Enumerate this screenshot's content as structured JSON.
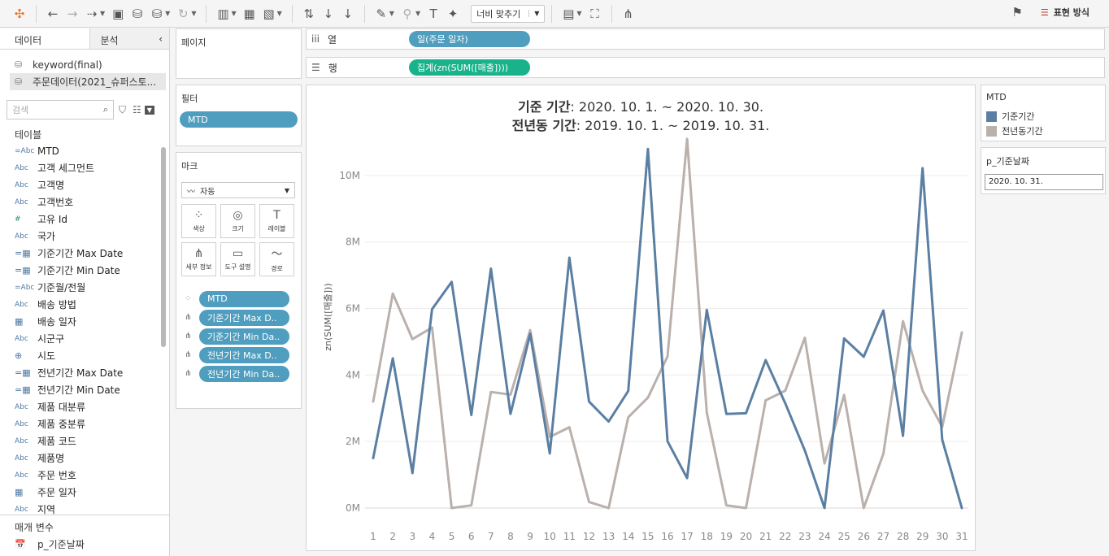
{
  "toolbar": {
    "fit_select": "너비 맞추기",
    "show_me": "표현 방식"
  },
  "data_pane": {
    "tab_data": "데이터",
    "tab_analytics": "분석",
    "datasources": [
      "keyword(final)",
      "주문데이터(2021_슈퍼스토..."
    ],
    "search_placeholder": "검색",
    "tables_header": "테이블",
    "fields": [
      {
        "type": "=Abc",
        "name": "MTD"
      },
      {
        "type": "Abc",
        "name": "고객 세그먼트"
      },
      {
        "type": "Abc",
        "name": "고객명"
      },
      {
        "type": "Abc",
        "name": "고객번호"
      },
      {
        "type": "#",
        "name": "고유 Id"
      },
      {
        "type": "Abc",
        "name": "국가"
      },
      {
        "type": "=date",
        "name": "기준기간 Max Date"
      },
      {
        "type": "=date",
        "name": "기준기간 Min Date"
      },
      {
        "type": "=Abc",
        "name": "기준월/전월"
      },
      {
        "type": "Abc",
        "name": "배송 방법"
      },
      {
        "type": "date",
        "name": "배송 일자"
      },
      {
        "type": "Abc",
        "name": "시군구"
      },
      {
        "type": "globe",
        "name": "시도"
      },
      {
        "type": "=date",
        "name": "전년기간 Max Date"
      },
      {
        "type": "=date",
        "name": "전년기간 Min Date"
      },
      {
        "type": "Abc",
        "name": "제품 대분류"
      },
      {
        "type": "Abc",
        "name": "제품 중분류"
      },
      {
        "type": "Abc",
        "name": "제품 코드"
      },
      {
        "type": "Abc",
        "name": "제품명"
      },
      {
        "type": "Abc",
        "name": "주문 번호"
      },
      {
        "type": "date",
        "name": "주문 일자"
      },
      {
        "type": "Abc",
        "name": "지역"
      }
    ],
    "params_header": "매개 변수",
    "params": [
      "p_기준날짜"
    ]
  },
  "pages": {
    "title": "페이지"
  },
  "filters": {
    "title": "필터",
    "pills": [
      "MTD"
    ]
  },
  "marks": {
    "title": "마크",
    "type": "자동",
    "buttons": [
      "색상",
      "크기",
      "레이블",
      "세부 정보",
      "도구 설명",
      "경로"
    ],
    "pills": [
      "MTD",
      "기준기간 Max D..",
      "기준기간 Min Da..",
      "전년기간 Max D..",
      "전년기간 Min Da.."
    ]
  },
  "shelves": {
    "columns_label": "열",
    "columns_pill": "일(주문 일자)",
    "rows_label": "행",
    "rows_pill": "집계(zn(SUM([매출])))"
  },
  "view": {
    "title_line1_bold": "기준 기간",
    "title_line1_rest": ": 2020. 10. 1. ~ 2020. 10. 30.",
    "title_line2_bold": "전년동 기간",
    "title_line2_rest": ": 2019. 10. 1. ~ 2019. 10. 31."
  },
  "legend": {
    "title": "MTD",
    "items": [
      {
        "name": "기준기간",
        "color": "#5b7fa3"
      },
      {
        "name": "전년동기간",
        "color": "#bab0ac"
      }
    ]
  },
  "parameter_card": {
    "title": "p_기준날짜",
    "value": "2020. 10. 31."
  },
  "chart_data": {
    "type": "line",
    "ylabel": "zn(SUM([매출]))",
    "ylim": [
      0,
      11000000
    ],
    "yticks": [
      0,
      2000000,
      4000000,
      6000000,
      8000000,
      10000000
    ],
    "ytick_labels": [
      "0M",
      "2M",
      "4M",
      "6M",
      "8M",
      "10M"
    ],
    "x": [
      1,
      2,
      3,
      4,
      5,
      6,
      7,
      8,
      9,
      10,
      11,
      12,
      13,
      14,
      15,
      16,
      17,
      18,
      19,
      20,
      21,
      22,
      23,
      24,
      25,
      26,
      27,
      28,
      29,
      30,
      31
    ],
    "series": [
      {
        "name": "기준기간",
        "color": "#5b7fa3",
        "values": [
          1500000,
          4500000,
          1050000,
          5980000,
          6800000,
          2800000,
          7200000,
          2830000,
          5240000,
          1640000,
          7530000,
          3200000,
          2600000,
          3520000,
          10800000,
          2010000,
          900000,
          5960000,
          2830000,
          2850000,
          4450000,
          3150000,
          1730000,
          0,
          5100000,
          4550000,
          5940000,
          2170000,
          10220000,
          2050000,
          0
        ]
      },
      {
        "name": "전년동기간",
        "color": "#bab0ac",
        "values": [
          3200000,
          6450000,
          5080000,
          5430000,
          0,
          80000,
          3490000,
          3410000,
          5350000,
          2140000,
          2430000,
          180000,
          0,
          2730000,
          3320000,
          4560000,
          11100000,
          2870000,
          80000,
          0,
          3240000,
          3530000,
          5120000,
          1340000,
          3400000,
          0,
          1630000,
          5620000,
          3530000,
          2440000,
          5280000
        ]
      }
    ]
  }
}
